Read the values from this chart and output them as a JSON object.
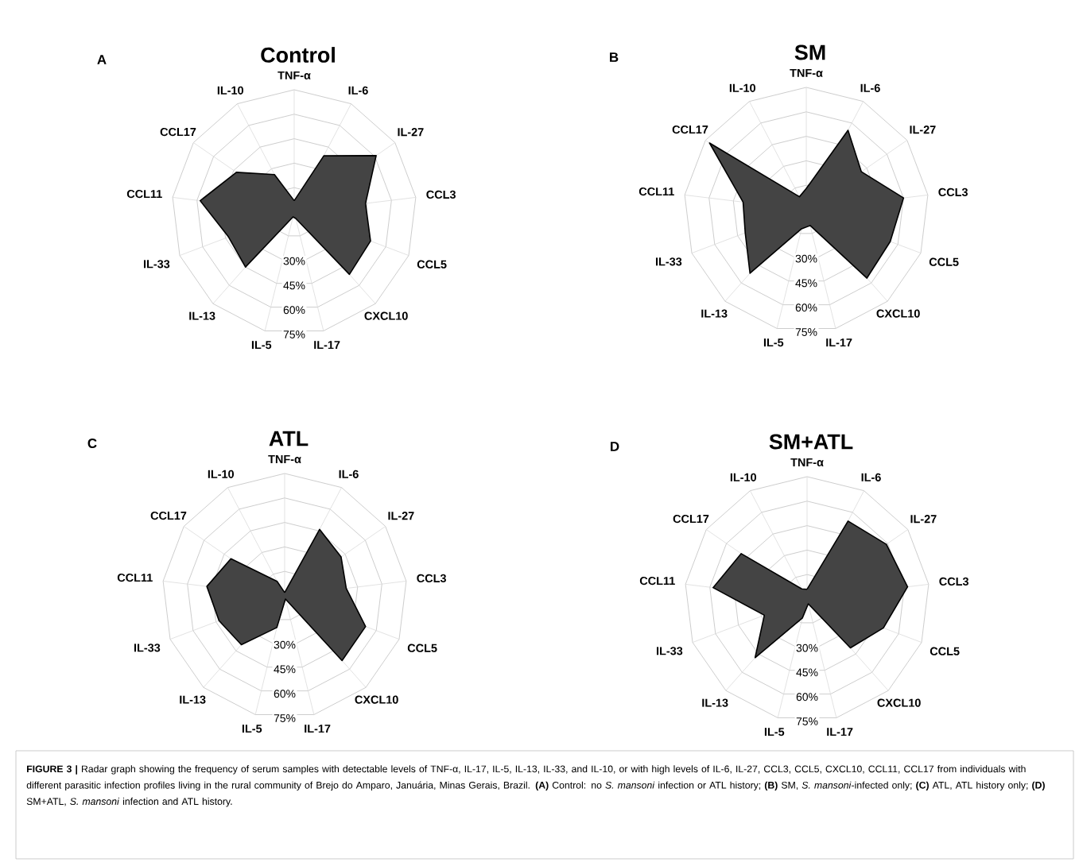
{
  "chart_data": [
    {
      "type": "radar",
      "title": "Control",
      "annotations": [
        "A"
      ],
      "categories": [
        "TNF-α",
        "IL-6",
        "IL-27",
        "CCL3",
        "CCL5",
        "CXCL10",
        "IL-17",
        "IL-5",
        "IL-13",
        "IL-33",
        "CCL11",
        "CCL17",
        "IL-10"
      ],
      "series": [
        {
          "color": "#444444",
          "values": [
            7,
            39,
            61,
            44,
            50,
            51,
            4,
            3,
            45,
            43,
            58,
            43,
            26
          ]
        }
      ],
      "ylim": [
        0,
        75
      ],
      "yticks": [
        {
          "value": 30,
          "label": "30%"
        },
        {
          "value": 45,
          "label": "45%"
        },
        {
          "value": 60,
          "label": "60%"
        },
        {
          "value": 75,
          "label": "75%"
        }
      ],
      "grid": true
    },
    {
      "type": "radar",
      "title": "SM",
      "annotations": [
        "B"
      ],
      "categories": [
        "TNF-α",
        "IL-6",
        "IL-27",
        "CCL3",
        "CCL5",
        "CXCL10",
        "IL-17",
        "IL-5",
        "IL-13",
        "IL-33",
        "CCL11",
        "CCL17",
        "IL-10"
      ],
      "series": [
        {
          "color": "#444444",
          "values": [
            13,
            55,
            41,
            60,
            55,
            56,
            10,
            12,
            52,
            40,
            39,
            72,
            9
          ]
        }
      ],
      "ylim": [
        0,
        75
      ],
      "yticks": [
        {
          "value": 30,
          "label": "30%"
        },
        {
          "value": 45,
          "label": "45%"
        },
        {
          "value": 60,
          "label": "60%"
        },
        {
          "value": 75,
          "label": "75%"
        }
      ],
      "grid": true
    },
    {
      "type": "radar",
      "title": "ATL",
      "annotations": [
        "C"
      ],
      "categories": [
        "TNF-α",
        "IL-6",
        "IL-27",
        "CCL3",
        "CCL5",
        "CXCL10",
        "IL-17",
        "IL-5",
        "IL-13",
        "IL-33",
        "CCL11",
        "CCL17",
        "IL-10"
      ],
      "series": [
        {
          "color": "#444444",
          "values": [
            2,
            46,
            42,
            38,
            53,
            53,
            2,
            20,
            40,
            43,
            48,
            40,
            10
          ]
        }
      ],
      "ylim": [
        0,
        75
      ],
      "yticks": [
        {
          "value": 30,
          "label": "30%"
        },
        {
          "value": 45,
          "label": "45%"
        },
        {
          "value": 60,
          "label": "60%"
        },
        {
          "value": 75,
          "label": "75%"
        }
      ],
      "grid": true
    },
    {
      "type": "radar",
      "title": "SM+ATL",
      "annotations": [
        "D",
        "**FIGURE 3 |** Radar graph showing the frequency of serum samples with detectable levels of TNF-α, IL-17, IL-5, IL-13, IL-33, and IL-10, or with high levels of IL-6, IL-27, CCL3, CCL5, CXCL10, CCL11, CCL17 from individuals with different parasitic infection profiles living in the rural community of Brejo do Amparo, Januária, Minas Gerais, Brazil. **(A)** Control: no *S. mansoni* infection or ATL history; **(B)** SM, *S. mansoni*-infected only; **(C)** ATL, ATL history only; **(D)** SM+ATL, *S. mansoni* infection and ATL history."
      ],
      "categories": [
        "TNF-α",
        "IL-6",
        "IL-27",
        "CCL3",
        "CCL5",
        "CXCL10",
        "IL-17",
        "IL-5",
        "IL-13",
        "IL-33",
        "CCL11",
        "CCL17",
        "IL-10"
      ],
      "series": [
        {
          "color": "#444444",
          "values": [
            6,
            54,
            59,
            62,
            50,
            40,
            3,
            12,
            48,
            28,
            58,
            49,
            7
          ]
        }
      ],
      "ylim": [
        0,
        75
      ],
      "yticks": [
        {
          "value": 30,
          "label": "30%"
        },
        {
          "value": 45,
          "label": "45%"
        },
        {
          "value": 60,
          "label": "60%"
        },
        {
          "value": 75,
          "label": "75%"
        }
      ],
      "grid": true
    }
  ]
}
